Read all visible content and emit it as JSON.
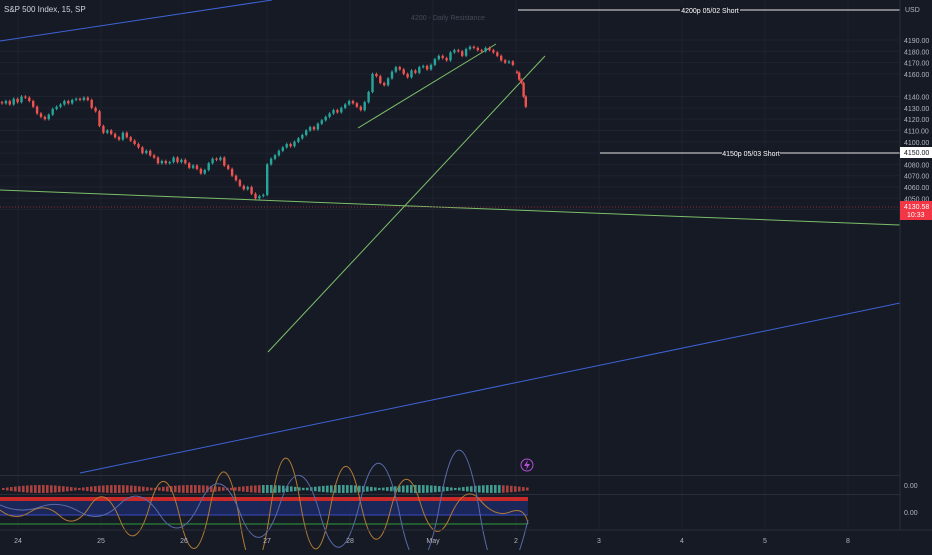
{
  "header": {
    "symbol": "S&P 500 Index, 15, SP",
    "currency": "USD"
  },
  "chart_data": {
    "type": "candlestick",
    "title": "S&P 500 Index, 15, SP",
    "y_tick_labels": [
      "4190.00",
      "4180.00",
      "4170.00",
      "4160.00",
      "4140.00",
      "4130.00",
      "4120.00",
      "4110.00",
      "4100.00",
      "4090.00",
      "4080.00",
      "4070.00",
      "4060.00",
      "4050.00",
      "4040.00"
    ],
    "y_ticks": [
      4190,
      4180,
      4170,
      4160,
      4140,
      4130,
      4120,
      4110,
      4100,
      4090,
      4080,
      4070,
      4060,
      4050,
      4040
    ],
    "ylim": [
      4036,
      4199
    ],
    "x_tick_labels": [
      "24",
      "25",
      "26",
      "27",
      "28",
      "May",
      "2",
      "3",
      "4",
      "5",
      "8"
    ],
    "levels": [
      {
        "label": "4200p 05/02 Short",
        "value": 4199
      },
      {
        "label": "4150p 05/03 Short",
        "value": 4150,
        "badge": "4150.00"
      }
    ],
    "faint_annotation": "4200 - Daily Resistance",
    "last_price": {
      "value": "4130.58",
      "countdown": "10:33"
    },
    "indicator_values": [
      "0.00",
      "0.00"
    ],
    "series": [
      {
        "values": [
          4134,
          4136,
          4133,
          4138,
          4135,
          4140,
          4139,
          4136,
          4131,
          4125,
          4122,
          4120,
          4124,
          4129,
          4131,
          4133,
          4136,
          4134,
          4137,
          4138,
          4137,
          4139,
          4137,
          4130,
          4127,
          4114,
          4108,
          4110,
          4107,
          4104,
          4102,
          4108,
          4104,
          4101,
          4098,
          4095,
          4090,
          4092,
          4088,
          4086,
          4081,
          4083,
          4081,
          4082,
          4086,
          4082,
          4084,
          4081,
          4077,
          4079,
          4076,
          4072,
          4075,
          4081,
          4085,
          4084,
          4086,
          4079,
          4076,
          4070,
          4066,
          4061,
          4058,
          4060,
          4054,
          4050,
          4052,
          4053,
          4080,
          4085,
          4088,
          4092,
          4095,
          4098,
          4096,
          4100,
          4103,
          4106,
          4110,
          4113,
          4111,
          4116,
          4119,
          4122,
          4125,
          4128,
          4126,
          4130,
          4133,
          4136,
          4134,
          4131,
          4128,
          4135,
          4144,
          4160,
          4158,
          4152,
          4150,
          4156,
          4162,
          4166,
          4164,
          4160,
          4157,
          4163,
          4161,
          4166,
          4167,
          4164,
          4168,
          4173,
          4176,
          4174,
          4172,
          4179,
          4181,
          4180,
          4176,
          4182,
          4184,
          4183,
          4181,
          4180,
          4183,
          4181,
          4179,
          4176,
          4172,
          4170,
          4171,
          4168
        ]
      },
      {
        "values": [
          4161,
          4155,
          4152,
          4140,
          4131
        ]
      }
    ]
  }
}
